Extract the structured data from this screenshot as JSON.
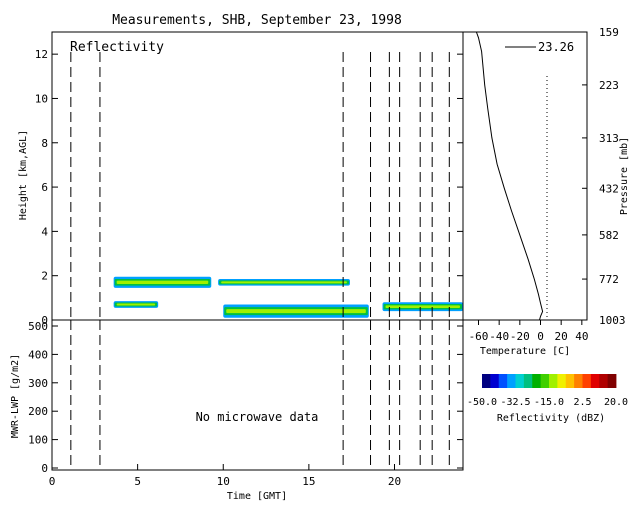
{
  "title": "Measurements, SHB, September 23, 1998",
  "chart_data": [
    {
      "type": "heatmap",
      "panel": "Reflectivity",
      "label": "Reflectivity",
      "xlabel": "",
      "ylabel": "Height [km,AGL]",
      "xlim": [
        0,
        24
      ],
      "ylim": [
        0,
        13
      ],
      "yticks": [
        0,
        2,
        4,
        6,
        8,
        10,
        12
      ],
      "event_lines_hours": [
        1.1,
        2.8,
        17.0,
        18.6,
        19.7,
        20.3,
        21.5,
        22.2,
        23.2
      ],
      "echo_layers": [
        {
          "x_start": 3.6,
          "x_end": 9.3,
          "height_km": 1.7,
          "depth_km": 0.5
        },
        {
          "x_start": 9.7,
          "x_end": 17.4,
          "height_km": 1.7,
          "depth_km": 0.3
        },
        {
          "x_start": 3.6,
          "x_end": 6.2,
          "height_km": 0.7,
          "depth_km": 0.3
        },
        {
          "x_start": 10.0,
          "x_end": 18.5,
          "height_km": 0.4,
          "depth_km": 0.6
        },
        {
          "x_start": 19.3,
          "x_end": 24.0,
          "height_km": 0.6,
          "depth_km": 0.4
        }
      ]
    },
    {
      "type": "line",
      "panel": "Temperature profile",
      "xlabel": "Temperature [C]",
      "ylabel": "Pressure [mb]",
      "xlim": [
        -75,
        45
      ],
      "xticks": [
        -60,
        -40,
        -20,
        0,
        20,
        40
      ],
      "pressure_ticks": [
        159,
        223,
        313,
        432,
        582,
        772,
        1003
      ],
      "legend_value": "23.26",
      "freezing_line_c": 0,
      "series": [
        {
          "temperature_c": [
            -62,
            -60,
            -57,
            -54,
            -51,
            -47,
            -42,
            -35,
            -28,
            -20,
            -12,
            -6,
            -2,
            0,
            2,
            0,
            -1
          ],
          "pressure_mb": [
            159,
            165,
            180,
            223,
            260,
            313,
            370,
            432,
            500,
            582,
            680,
            772,
            850,
            900,
            950,
            980,
            1003
          ]
        }
      ]
    },
    {
      "type": "line",
      "panel": "MWR-LWP",
      "xlabel": "Time [GMT]",
      "ylabel": "MWR-LWP [g/m2]",
      "xlim": [
        0,
        24
      ],
      "xticks": [
        0,
        5,
        10,
        15,
        20
      ],
      "ylim": [
        0,
        500
      ],
      "yticks": [
        0,
        100,
        200,
        300,
        400,
        500
      ],
      "annotation": "No microwave data",
      "event_lines_hours": [
        1.1,
        2.8,
        17.0,
        18.6,
        19.7,
        20.3,
        21.5,
        22.2,
        23.2
      ]
    },
    {
      "type": "heatmap",
      "panel": "Colorbar",
      "label": "Reflectivity (dBZ)",
      "range": [
        -50.0,
        20.0
      ],
      "tick_labels": [
        "-50.0",
        "-32.5",
        "-15.0",
        "2.5",
        "20.0"
      ],
      "colors": [
        "#000080",
        "#0000d0",
        "#0050ff",
        "#00a0ff",
        "#00d0d0",
        "#00c080",
        "#00b000",
        "#40d000",
        "#a0f000",
        "#f0f000",
        "#ffc000",
        "#ff8000",
        "#ff4000",
        "#e00000",
        "#b00000",
        "#800000"
      ]
    }
  ]
}
